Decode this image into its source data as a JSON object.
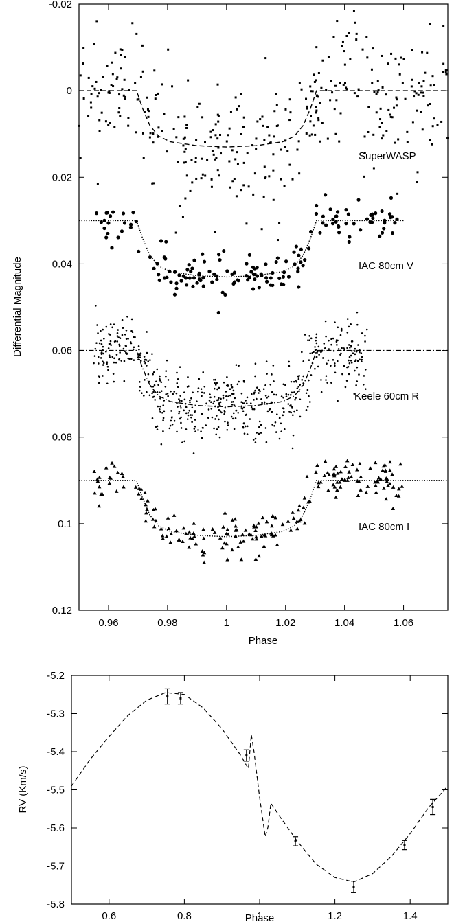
{
  "chart_data": [
    {
      "type": "scatter",
      "title": "",
      "xlabel": "Phase",
      "ylabel": "Differential Magnitude",
      "xlim": [
        0.95,
        1.075
      ],
      "ylim": [
        -0.02,
        0.12
      ],
      "y_inverted": true,
      "grid": false,
      "x_ticks": [
        0.96,
        0.98,
        1,
        1.02,
        1.04,
        1.06
      ],
      "x_tick_labels": [
        "0.96",
        "0.98",
        "1",
        "1.02",
        "1.04",
        "1.06"
      ],
      "y_ticks": [
        -0.02,
        0,
        0.02,
        0.04,
        0.06,
        0.08,
        0.1,
        0.12
      ],
      "y_tick_labels": [
        "-0.02",
        "0",
        "0.02",
        "0.04",
        "0.06",
        "0.08",
        "0.1",
        "0.12"
      ],
      "series": [
        {
          "name": "SuperWASP",
          "marker": "square",
          "line": "dashed",
          "offset": 0.0,
          "depth": 0.013,
          "x_range": [
            0.95,
            1.075
          ],
          "scatter": 0.008,
          "n_points": 380,
          "model": [
            [
              0.95,
              0.0
            ],
            [
              0.9695,
              0.0
            ],
            [
              0.9715,
              0.004
            ],
            [
              0.974,
              0.008
            ],
            [
              0.977,
              0.0105
            ],
            [
              0.981,
              0.0118
            ],
            [
              0.99,
              0.0127
            ],
            [
              1.0,
              0.013
            ],
            [
              1.01,
              0.0127
            ],
            [
              1.019,
              0.0118
            ],
            [
              1.023,
              0.0105
            ],
            [
              1.026,
              0.008
            ],
            [
              1.0285,
              0.004
            ],
            [
              1.0305,
              0.0
            ],
            [
              1.075,
              0.0
            ]
          ]
        },
        {
          "name": "IAC 80cm V",
          "marker": "circle",
          "line": "dotted",
          "offset": 0.03,
          "depth": 0.013,
          "x_range": [
            0.955,
            1.06
          ],
          "scatter": 0.0025,
          "n_points": 170,
          "model": [
            [
              0.95,
              0.03
            ],
            [
              0.9695,
              0.03
            ],
            [
              0.9715,
              0.034
            ],
            [
              0.974,
              0.038
            ],
            [
              0.977,
              0.0405
            ],
            [
              0.981,
              0.0418
            ],
            [
              0.99,
              0.0427
            ],
            [
              1.0,
              0.043
            ],
            [
              1.01,
              0.0427
            ],
            [
              1.019,
              0.0418
            ],
            [
              1.023,
              0.0405
            ],
            [
              1.026,
              0.038
            ],
            [
              1.0285,
              0.034
            ],
            [
              1.0305,
              0.03
            ],
            [
              1.06,
              0.03
            ]
          ]
        },
        {
          "name": "Keele 60cm R",
          "marker": "dot",
          "line": "dash-dot",
          "offset": 0.06,
          "depth": 0.013,
          "x_range": [
            0.955,
            1.048
          ],
          "scatter": 0.004,
          "n_points": 620,
          "model": [
            [
              0.95,
              0.06
            ],
            [
              0.9695,
              0.06
            ],
            [
              0.9715,
              0.064
            ],
            [
              0.974,
              0.068
            ],
            [
              0.977,
              0.0705
            ],
            [
              0.981,
              0.0718
            ],
            [
              0.99,
              0.0727
            ],
            [
              1.0,
              0.073
            ],
            [
              1.01,
              0.0727
            ],
            [
              1.019,
              0.0718
            ],
            [
              1.023,
              0.0705
            ],
            [
              1.026,
              0.068
            ],
            [
              1.0285,
              0.064
            ],
            [
              1.0305,
              0.06
            ],
            [
              1.075,
              0.06
            ]
          ]
        },
        {
          "name": "IAC 80cm I",
          "marker": "triangle",
          "line": "dotted",
          "offset": 0.09,
          "depth": 0.013,
          "x_range": [
            0.955,
            1.06
          ],
          "scatter": 0.0025,
          "n_points": 210,
          "model": [
            [
              0.95,
              0.09
            ],
            [
              0.9695,
              0.09
            ],
            [
              0.9715,
              0.094
            ],
            [
              0.974,
              0.098
            ],
            [
              0.977,
              0.1005
            ],
            [
              0.981,
              0.1018
            ],
            [
              0.99,
              0.1027
            ],
            [
              1.0,
              0.103
            ],
            [
              1.01,
              0.1027
            ],
            [
              1.019,
              0.1018
            ],
            [
              1.023,
              0.1005
            ],
            [
              1.026,
              0.098
            ],
            [
              1.0285,
              0.094
            ],
            [
              1.0305,
              0.09
            ],
            [
              1.075,
              0.09
            ]
          ]
        }
      ]
    },
    {
      "type": "line",
      "title": "",
      "xlabel": "Phase",
      "ylabel": "RV (Km/s)",
      "xlim": [
        0.5,
        1.5
      ],
      "ylim": [
        -5.8,
        -5.2
      ],
      "grid": false,
      "x_ticks": [
        0.6,
        0.8,
        1,
        1.2,
        1.4
      ],
      "x_tick_labels": [
        "0.6",
        "0.8",
        "1",
        "1.2",
        "1.4"
      ],
      "y_ticks": [
        -5.8,
        -5.7,
        -5.6,
        -5.5,
        -5.4,
        -5.3,
        -5.2
      ],
      "y_tick_labels": [
        "-5.8",
        "-5.7",
        "-5.6",
        "-5.5",
        "-5.4",
        "-5.3",
        "-5.2"
      ],
      "model": [
        [
          0.5,
          -5.49
        ],
        [
          0.55,
          -5.42
        ],
        [
          0.6,
          -5.36
        ],
        [
          0.65,
          -5.305
        ],
        [
          0.7,
          -5.265
        ],
        [
          0.75,
          -5.245
        ],
        [
          0.8,
          -5.25
        ],
        [
          0.85,
          -5.285
        ],
        [
          0.9,
          -5.34
        ],
        [
          0.95,
          -5.41
        ],
        [
          0.97,
          -5.445
        ],
        [
          0.978,
          -5.355
        ],
        [
          0.985,
          -5.4
        ],
        [
          1.0,
          -5.52
        ],
        [
          1.015,
          -5.623
        ],
        [
          1.022,
          -5.598
        ],
        [
          1.03,
          -5.535
        ],
        [
          1.05,
          -5.565
        ],
        [
          1.1,
          -5.635
        ],
        [
          1.15,
          -5.695
        ],
        [
          1.2,
          -5.73
        ],
        [
          1.25,
          -5.742
        ],
        [
          1.3,
          -5.72
        ],
        [
          1.35,
          -5.675
        ],
        [
          1.4,
          -5.615
        ],
        [
          1.45,
          -5.545
        ],
        [
          1.5,
          -5.49
        ]
      ],
      "points": [
        {
          "x": 0.755,
          "y": -5.255,
          "err": 0.02
        },
        {
          "x": 0.79,
          "y": -5.26,
          "err": 0.015
        },
        {
          "x": 0.965,
          "y": -5.41,
          "err": 0.015
        },
        {
          "x": 1.095,
          "y": -5.635,
          "err": 0.012
        },
        {
          "x": 1.25,
          "y": -5.755,
          "err": 0.015
        },
        {
          "x": 1.385,
          "y": -5.645,
          "err": 0.012
        },
        {
          "x": 1.46,
          "y": -5.545,
          "err": 0.02
        }
      ]
    }
  ]
}
